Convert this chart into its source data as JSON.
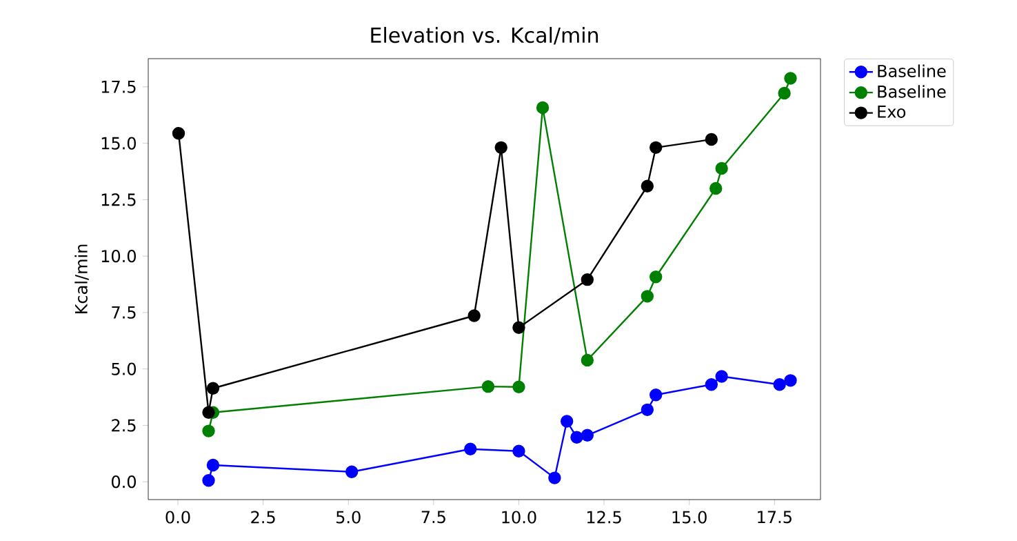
{
  "chart_data": {
    "type": "line",
    "title": "Elevation vs. Kcal/min",
    "ylabel": "Kcal/min",
    "series": [
      {
        "name": "Baseline",
        "color": "#0000ff",
        "x": [
          0.9,
          1.03,
          5.1,
          8.58,
          10.0,
          11.05,
          11.41,
          11.7,
          12.01,
          13.77,
          14.02,
          15.65,
          15.95,
          17.65,
          17.97
        ],
        "values": [
          0.06,
          0.74,
          0.44,
          1.45,
          1.36,
          0.17,
          2.68,
          1.97,
          2.06,
          3.19,
          3.85,
          4.31,
          4.67,
          4.31,
          4.49
        ]
      },
      {
        "name": "Baseline",
        "color": "#008000",
        "x": [
          0.9,
          1.03,
          9.1,
          10.0,
          10.7,
          12.01,
          13.77,
          14.02,
          15.78,
          15.95,
          17.79,
          17.97
        ],
        "values": [
          2.25,
          3.07,
          4.22,
          4.2,
          16.58,
          5.39,
          8.22,
          9.08,
          13.0,
          13.89,
          17.22,
          17.88
        ]
      },
      {
        "name": "Exo",
        "color": "#000000",
        "x": [
          0.02,
          0.9,
          1.03,
          8.69,
          9.48,
          10.0,
          12.01,
          13.77,
          14.02,
          15.65
        ],
        "values": [
          15.44,
          3.07,
          4.14,
          7.36,
          14.81,
          6.83,
          8.96,
          13.1,
          14.81,
          15.17
        ]
      }
    ],
    "xlim": [
      -0.87,
      18.85
    ],
    "ylim": [
      -0.79,
      18.75
    ],
    "xticks": [
      {
        "value": 0,
        "label": "0.0"
      },
      2.5,
      {
        "value": 5,
        "label": "5.0"
      },
      7.5,
      {
        "value": 10,
        "label": "10.0"
      },
      12.5,
      {
        "value": 15,
        "label": "15.0"
      },
      17.5
    ],
    "yticks": [
      {
        "value": 0,
        "label": "0.0"
      },
      2.5,
      {
        "value": 5,
        "label": "5.0"
      },
      7.5,
      {
        "value": 10,
        "label": "10.0"
      },
      12.5,
      {
        "value": 15,
        "label": "15.0"
      },
      17.5
    ],
    "marker": "circle",
    "line_style": "solid",
    "legend": "top right",
    "grid": false
  }
}
